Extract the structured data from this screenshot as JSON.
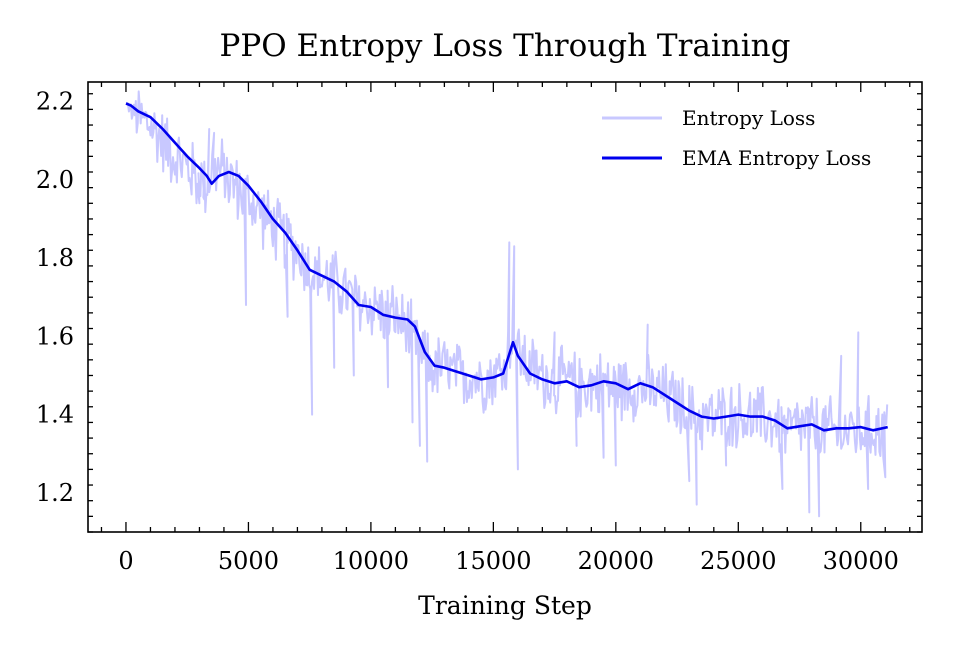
{
  "chart_data": {
    "type": "line",
    "title": "PPO Entropy Loss Through Training",
    "xlabel": "Training Step",
    "ylabel": "",
    "xlim": [
      -1550,
      32500
    ],
    "ylim": [
      1.1,
      2.25
    ],
    "xticks": [
      0,
      5000,
      10000,
      15000,
      20000,
      25000,
      30000
    ],
    "xtick_labels": [
      "0",
      "5000",
      "10000",
      "15000",
      "20000",
      "25000",
      "30000"
    ],
    "yticks": [
      1.2,
      1.4,
      1.6,
      1.8,
      2.0,
      2.2
    ],
    "ytick_labels": [
      "1.2",
      "1.4",
      "1.6",
      "1.8",
      "2.0",
      "2.2"
    ],
    "legend_position": "top-right",
    "colors": {
      "raw": "#c8c8ff",
      "ema": "#0000ee",
      "axes": "#000000"
    },
    "series": [
      {
        "name": "Entropy Loss",
        "style": "raw-noisy",
        "noise_band": 0.085,
        "x": [
          0,
          500,
          1000,
          1500,
          2000,
          2500,
          3000,
          3300,
          3500,
          4000,
          4500,
          5000,
          5500,
          6000,
          6500,
          7000,
          7500,
          8000,
          8500,
          9000,
          9500,
          10000,
          10500,
          11000,
          11500,
          12000,
          12500,
          13000,
          13500,
          14000,
          14500,
          15000,
          15500,
          15800,
          16000,
          16500,
          17000,
          17500,
          18000,
          18500,
          19000,
          19500,
          20000,
          20500,
          21000,
          21500,
          22000,
          22500,
          23000,
          23500,
          24000,
          24500,
          25000,
          25500,
          26000,
          26500,
          27000,
          27500,
          28000,
          28500,
          29000,
          29500,
          30000,
          30500,
          31100
        ],
        "values": [
          2.19,
          2.16,
          2.14,
          2.1,
          2.06,
          2.03,
          2.0,
          1.99,
          2.03,
          2.02,
          1.98,
          1.95,
          1.92,
          1.88,
          1.85,
          1.82,
          1.77,
          1.75,
          1.74,
          1.71,
          1.68,
          1.68,
          1.66,
          1.65,
          1.62,
          1.55,
          1.52,
          1.52,
          1.5,
          1.5,
          1.49,
          1.5,
          1.52,
          1.64,
          1.56,
          1.52,
          1.5,
          1.48,
          1.49,
          1.47,
          1.48,
          1.48,
          1.47,
          1.47,
          1.47,
          1.46,
          1.45,
          1.43,
          1.4,
          1.39,
          1.39,
          1.4,
          1.4,
          1.39,
          1.39,
          1.38,
          1.36,
          1.37,
          1.37,
          1.36,
          1.36,
          1.36,
          1.36,
          1.36,
          1.37
        ],
        "spikes": [
          {
            "x": 3400,
            "y": 2.13
          },
          {
            "x": 3600,
            "y": 2.12
          },
          {
            "x": 3200,
            "y": 1.95
          },
          {
            "x": 3000,
            "y": 1.94
          },
          {
            "x": 4900,
            "y": 1.68
          },
          {
            "x": 6600,
            "y": 1.65
          },
          {
            "x": 7600,
            "y": 1.4
          },
          {
            "x": 8500,
            "y": 1.52
          },
          {
            "x": 9300,
            "y": 1.5
          },
          {
            "x": 10700,
            "y": 1.47
          },
          {
            "x": 11700,
            "y": 1.38
          },
          {
            "x": 12000,
            "y": 1.32
          },
          {
            "x": 12300,
            "y": 1.28
          },
          {
            "x": 15650,
            "y": 1.84
          },
          {
            "x": 15850,
            "y": 1.83
          },
          {
            "x": 16000,
            "y": 1.26
          },
          {
            "x": 17500,
            "y": 1.61
          },
          {
            "x": 18400,
            "y": 1.32
          },
          {
            "x": 19500,
            "y": 1.29
          },
          {
            "x": 20000,
            "y": 1.27
          },
          {
            "x": 21300,
            "y": 1.63
          },
          {
            "x": 23000,
            "y": 1.23
          },
          {
            "x": 23300,
            "y": 1.17
          },
          {
            "x": 24500,
            "y": 1.27
          },
          {
            "x": 26800,
            "y": 1.21
          },
          {
            "x": 27900,
            "y": 1.15
          },
          {
            "x": 28300,
            "y": 1.14
          },
          {
            "x": 29200,
            "y": 1.55
          },
          {
            "x": 29900,
            "y": 1.61
          },
          {
            "x": 30300,
            "y": 1.21
          },
          {
            "x": 31000,
            "y": 1.24
          }
        ]
      },
      {
        "name": "EMA Entropy Loss",
        "style": "smooth",
        "x": [
          0,
          200,
          500,
          1000,
          1500,
          2000,
          2500,
          3000,
          3300,
          3500,
          3800,
          4200,
          4600,
          5000,
          5500,
          6000,
          6500,
          7000,
          7500,
          8000,
          8500,
          9000,
          9500,
          10000,
          10500,
          11000,
          11500,
          11800,
          12200,
          12600,
          13000,
          13500,
          14000,
          14500,
          15000,
          15400,
          15600,
          15800,
          16000,
          16500,
          17000,
          17500,
          18000,
          18500,
          19000,
          19500,
          20000,
          20500,
          21000,
          21500,
          22000,
          22500,
          23000,
          23500,
          24000,
          24500,
          25000,
          25500,
          26000,
          26500,
          27000,
          27500,
          28000,
          28500,
          29000,
          29500,
          30000,
          30500,
          31100
        ],
        "values": [
          2.195,
          2.19,
          2.175,
          2.16,
          2.13,
          2.095,
          2.06,
          2.03,
          2.01,
          1.99,
          2.01,
          2.02,
          2.01,
          1.985,
          1.945,
          1.9,
          1.865,
          1.82,
          1.77,
          1.755,
          1.74,
          1.715,
          1.68,
          1.675,
          1.655,
          1.648,
          1.643,
          1.625,
          1.56,
          1.525,
          1.52,
          1.51,
          1.5,
          1.49,
          1.495,
          1.505,
          1.545,
          1.585,
          1.55,
          1.505,
          1.49,
          1.48,
          1.485,
          1.47,
          1.475,
          1.485,
          1.48,
          1.465,
          1.48,
          1.47,
          1.45,
          1.43,
          1.41,
          1.395,
          1.39,
          1.395,
          1.4,
          1.395,
          1.395,
          1.385,
          1.365,
          1.37,
          1.375,
          1.36,
          1.365,
          1.365,
          1.368,
          1.36,
          1.368
        ]
      }
    ]
  }
}
